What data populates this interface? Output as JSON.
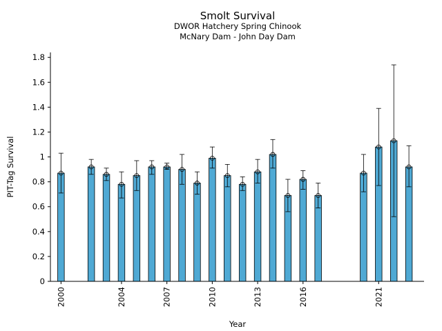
{
  "chart_data": {
    "type": "bar",
    "title": "Smolt Survival",
    "subtitle_lines": [
      "DWOR Hatchery Spring Chinook",
      "McNary Dam - John Day Dam"
    ],
    "xlabel": "Year",
    "ylabel": "PIT-Tag Survival",
    "ylim": [
      0,
      1.84
    ],
    "xlim": [
      1999.3,
      2024.0
    ],
    "yticks": [
      0,
      0.2,
      0.4,
      0.6,
      0.8,
      1,
      1.2,
      1.4,
      1.6,
      1.8
    ],
    "ytick_labels": [
      "0",
      "0.2",
      "0.4",
      "0.6",
      "0.8",
      "1",
      "1.2",
      "1.4",
      "1.6",
      "1.8"
    ],
    "xticks": [
      2000,
      2004,
      2007,
      2010,
      2013,
      2016,
      2021
    ],
    "xtick_labels": [
      "2000",
      "2004",
      "2007",
      "2010",
      "2013",
      "2016",
      "2021"
    ],
    "grid": false,
    "bar_color": "#4fa9d4",
    "edge_color": "#000000",
    "x": [
      2000,
      2002,
      2003,
      2004,
      2005,
      2006,
      2007,
      2008,
      2009,
      2010,
      2011,
      2012,
      2013,
      2014,
      2015,
      2016,
      2017,
      2020,
      2021,
      2022,
      2023
    ],
    "values": [
      0.87,
      0.92,
      0.86,
      0.78,
      0.85,
      0.92,
      0.92,
      0.9,
      0.79,
      0.99,
      0.85,
      0.78,
      0.88,
      1.02,
      0.69,
      0.82,
      0.69,
      0.87,
      1.08,
      1.13,
      0.92
    ],
    "error_low": [
      0.71,
      0.86,
      0.81,
      0.67,
      0.73,
      0.86,
      0.9,
      0.78,
      0.7,
      0.91,
      0.76,
      0.73,
      0.79,
      0.91,
      0.56,
      0.74,
      0.59,
      0.72,
      0.77,
      0.52,
      0.76
    ],
    "error_high": [
      1.03,
      0.98,
      0.91,
      0.88,
      0.97,
      0.97,
      0.95,
      1.02,
      0.88,
      1.08,
      0.94,
      0.84,
      0.98,
      1.14,
      0.82,
      0.89,
      0.79,
      1.02,
      1.39,
      1.74,
      1.09
    ]
  }
}
